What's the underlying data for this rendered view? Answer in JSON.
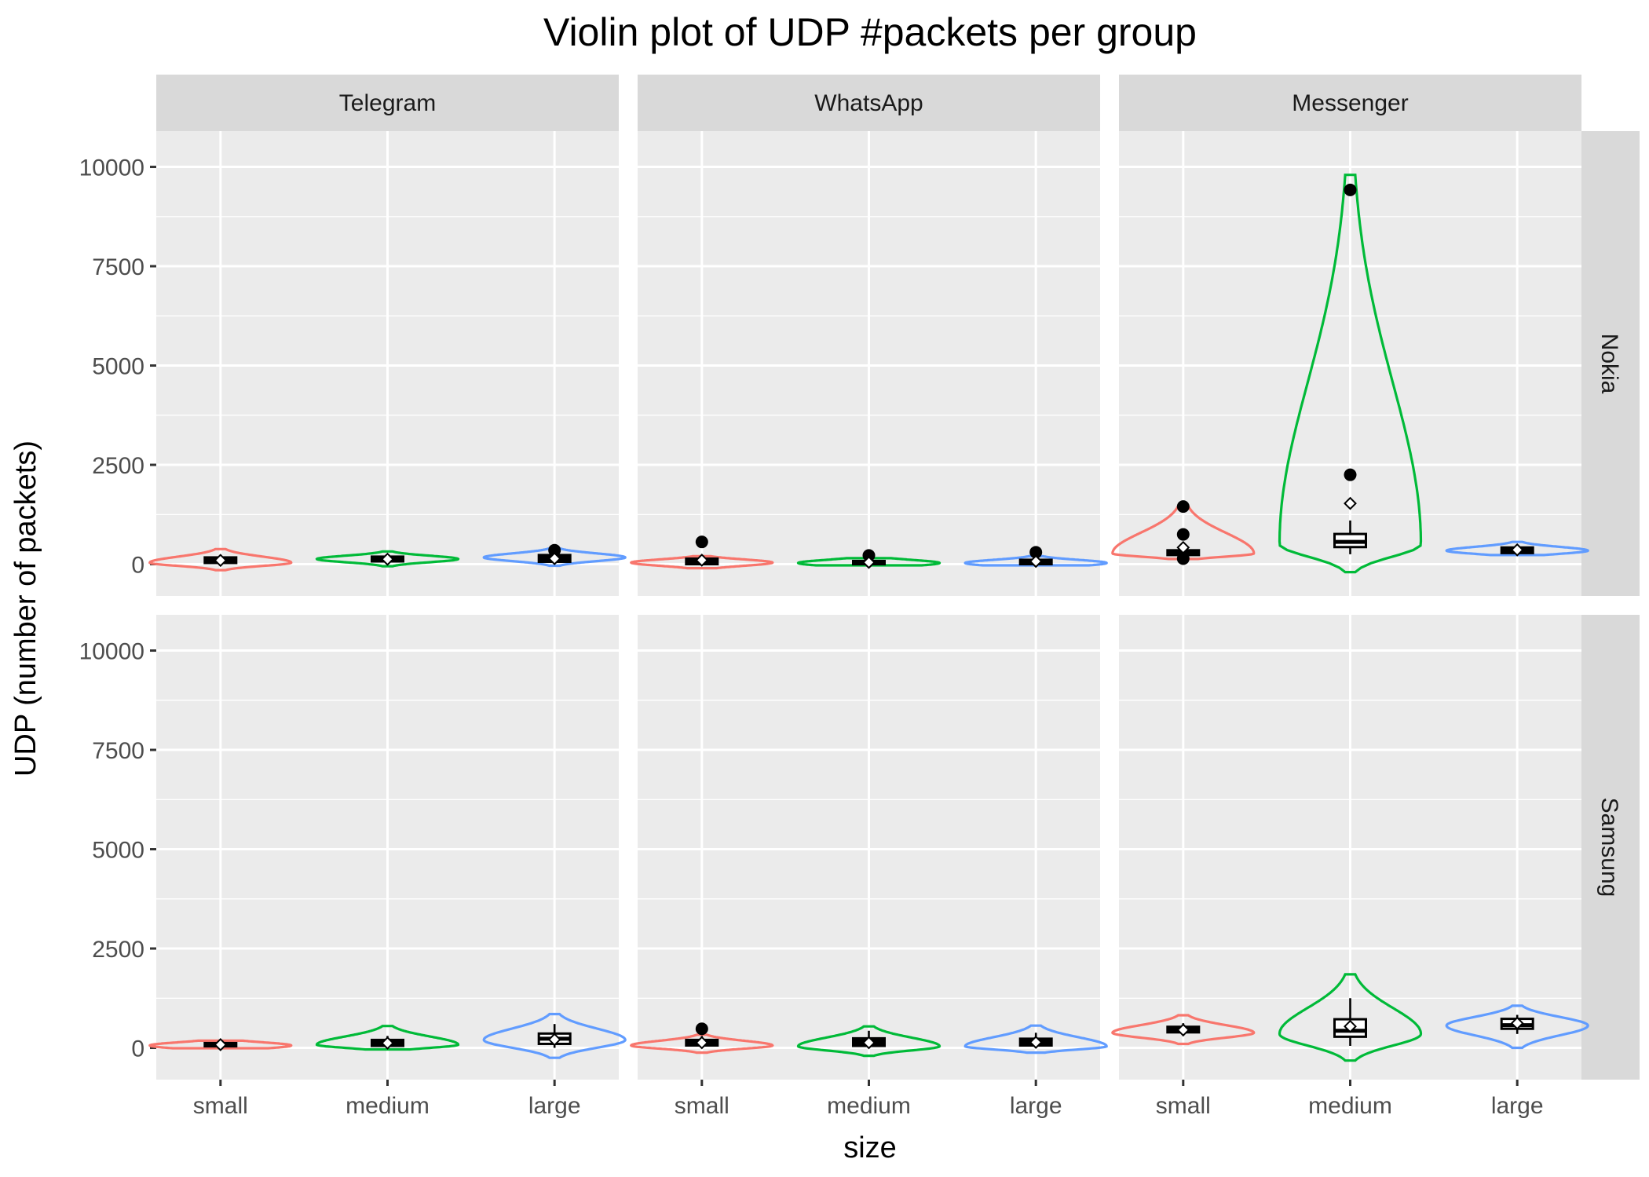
{
  "chart_data": {
    "type": "violin",
    "title": "Violin plot of UDP #packets per group",
    "xlabel": "size",
    "ylabel": "UDP (number of packets)",
    "categories": [
      "small",
      "medium",
      "large"
    ],
    "facet_columns": [
      "Telegram",
      "WhatsApp",
      "Messenger"
    ],
    "facet_rows": [
      "Nokia",
      "Samsung"
    ],
    "ylim": [
      -800,
      10900
    ],
    "yticks": [
      0,
      2500,
      5000,
      7500,
      10000
    ],
    "ytick_labels": [
      "0",
      "2500",
      "5000",
      "7500",
      "10000"
    ],
    "grid": true,
    "legend": "none",
    "colors": {
      "small": "#F8766D",
      "medium": "#00BA38",
      "large": "#619CFF",
      "panel": "#EBEBEB",
      "strip": "#D9D9D9",
      "grid": "#FFFFFF"
    },
    "panels": [
      {
        "app": "Telegram",
        "device": "Nokia",
        "groups": [
          {
            "size": "small",
            "vmin": -150,
            "vmax": 380,
            "peak": 40,
            "q1": 30,
            "median": 100,
            "q3": 170,
            "wlo": 0,
            "whi": 240,
            "mean": 95,
            "outliers": []
          },
          {
            "size": "medium",
            "vmin": -50,
            "vmax": 320,
            "peak": 130,
            "q1": 70,
            "median": 120,
            "q3": 190,
            "wlo": 20,
            "whi": 260,
            "mean": 125,
            "outliers": []
          },
          {
            "size": "large",
            "vmin": -40,
            "vmax": 400,
            "peak": 170,
            "q1": 60,
            "median": 130,
            "q3": 230,
            "wlo": 10,
            "whi": 300,
            "mean": 140,
            "outliers": [
              350
            ]
          }
        ]
      },
      {
        "app": "WhatsApp",
        "device": "Nokia",
        "groups": [
          {
            "size": "small",
            "vmin": -100,
            "vmax": 200,
            "peak": 40,
            "q1": 0,
            "median": 60,
            "q3": 140,
            "wlo": -10,
            "whi": 180,
            "mean": 100,
            "outliers": [
              560
            ]
          },
          {
            "size": "medium",
            "vmin": -30,
            "vmax": 150,
            "peak": 30,
            "q1": 0,
            "median": 30,
            "q3": 80,
            "wlo": -10,
            "whi": 140,
            "mean": 45,
            "outliers": [
              220
            ]
          },
          {
            "size": "large",
            "vmin": -30,
            "vmax": 200,
            "peak": 30,
            "q1": 0,
            "median": 40,
            "q3": 110,
            "wlo": -10,
            "whi": 170,
            "mean": 70,
            "outliers": [
              300
            ]
          }
        ]
      },
      {
        "app": "Messenger",
        "device": "Nokia",
        "groups": [
          {
            "size": "small",
            "vmin": 130,
            "vmax": 1460,
            "peak": 270,
            "q1": 230,
            "median": 300,
            "q3": 350,
            "wlo": 180,
            "whi": 420,
            "mean": 420,
            "outliers": [
              140,
              750,
              1450
            ]
          },
          {
            "size": "medium",
            "vmin": -200,
            "vmax": 9800,
            "peak": 500,
            "q1": 430,
            "median": 560,
            "q3": 760,
            "wlo": 250,
            "whi": 1100,
            "mean": 1530,
            "outliers": [
              2250,
              9420
            ]
          },
          {
            "size": "large",
            "vmin": 230,
            "vmax": 560,
            "peak": 340,
            "q1": 280,
            "median": 340,
            "q3": 420,
            "wlo": 230,
            "whi": 480,
            "mean": 360,
            "outliers": []
          }
        ]
      },
      {
        "app": "Telegram",
        "device": "Samsung",
        "groups": [
          {
            "size": "small",
            "vmin": -10,
            "vmax": 180,
            "peak": 60,
            "q1": 40,
            "median": 70,
            "q3": 120,
            "wlo": 10,
            "whi": 160,
            "mean": 80,
            "outliers": []
          },
          {
            "size": "medium",
            "vmin": -40,
            "vmax": 550,
            "peak": 80,
            "q1": 50,
            "median": 100,
            "q3": 200,
            "wlo": 10,
            "whi": 300,
            "mean": 120,
            "outliers": []
          },
          {
            "size": "large",
            "vmin": -250,
            "vmax": 850,
            "peak": 200,
            "q1": 100,
            "median": 230,
            "q3": 360,
            "wlo": 0,
            "whi": 600,
            "mean": 210,
            "outliers": []
          }
        ]
      },
      {
        "app": "WhatsApp",
        "device": "Samsung",
        "groups": [
          {
            "size": "small",
            "vmin": -120,
            "vmax": 330,
            "peak": 60,
            "q1": 60,
            "median": 120,
            "q3": 200,
            "wlo": 10,
            "whi": 300,
            "mean": 130,
            "outliers": [
              480
            ]
          },
          {
            "size": "medium",
            "vmin": -200,
            "vmax": 540,
            "peak": 40,
            "q1": 50,
            "median": 110,
            "q3": 240,
            "wlo": -10,
            "whi": 430,
            "mean": 130,
            "outliers": []
          },
          {
            "size": "large",
            "vmin": -120,
            "vmax": 560,
            "peak": 40,
            "q1": 60,
            "median": 110,
            "q3": 230,
            "wlo": 0,
            "whi": 380,
            "mean": 140,
            "outliers": []
          }
        ]
      },
      {
        "app": "Messenger",
        "device": "Samsung",
        "groups": [
          {
            "size": "small",
            "vmin": 100,
            "vmax": 820,
            "peak": 380,
            "q1": 390,
            "median": 450,
            "q3": 530,
            "wlo": 300,
            "whi": 620,
            "mean": 450,
            "outliers": []
          },
          {
            "size": "medium",
            "vmin": -320,
            "vmax": 1850,
            "peak": 350,
            "q1": 280,
            "median": 430,
            "q3": 720,
            "wlo": 50,
            "whi": 1250,
            "mean": 540,
            "outliers": []
          },
          {
            "size": "large",
            "vmin": 0,
            "vmax": 1060,
            "peak": 560,
            "q1": 480,
            "median": 570,
            "q3": 730,
            "wlo": 350,
            "whi": 830,
            "mean": 620,
            "outliers": []
          }
        ]
      }
    ]
  }
}
